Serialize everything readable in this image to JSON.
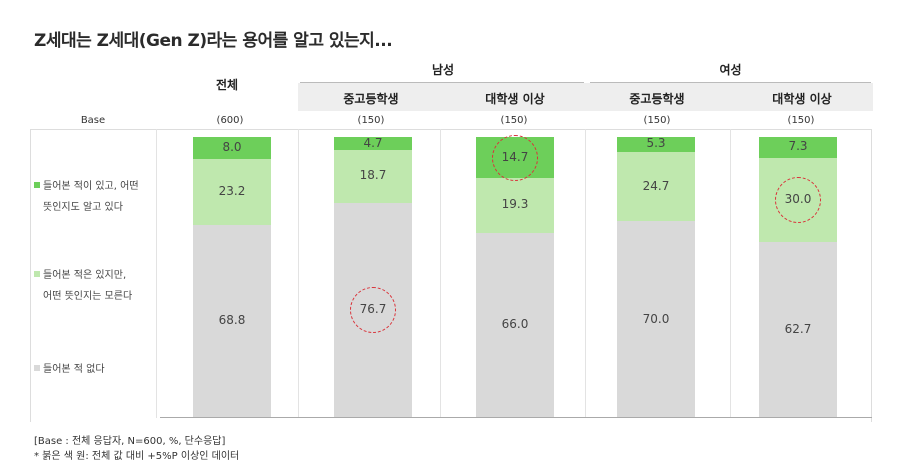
{
  "title": "Z세대는 Z세대(Gen Z)라는 용어를 알고 있는지...",
  "headers": {
    "total": "전체",
    "groups": [
      "남성",
      "여성"
    ],
    "subgroups": [
      "중고등학생",
      "대학생 이상",
      "중고등학생",
      "대학생 이상"
    ]
  },
  "base": {
    "label": "Base",
    "values": [
      "(600)",
      "(150)",
      "(150)",
      "(150)",
      "(150)"
    ]
  },
  "legend": [
    {
      "lines": [
        "들어본 적이 있고, 어떤",
        "뜻인지도 알고 있다"
      ],
      "color": "#6dcf5a"
    },
    {
      "lines": [
        "들어본 적은 있지만,",
        "어떤 뜻인지는 모른다"
      ],
      "color": "#bfe8ae"
    },
    {
      "lines": [
        "들어본 적 없다"
      ],
      "color": "#d9d9d9"
    }
  ],
  "footnotes": [
    "[Base :  전체 응답자, N=600, %, 단수응답]",
    "* 붉은 색 원: 전체 값 대비 +5%P 이상인 데이터"
  ],
  "colors": {
    "know": "#6dcf5a",
    "heard": "#bfe8ae",
    "never": "#d9d9d9",
    "highlight": "#d9333a"
  },
  "chart_data": {
    "type": "bar",
    "stacked": true,
    "categories": [
      "전체",
      "남성 중고등학생",
      "남성 대학생 이상",
      "여성 중고등학생",
      "여성 대학생 이상"
    ],
    "series": [
      {
        "name": "들어본 적 없다",
        "values": [
          68.8,
          76.7,
          66.0,
          70.0,
          62.7
        ]
      },
      {
        "name": "들어본 적은 있지만, 어떤 뜻인지는 모른다",
        "values": [
          23.2,
          18.7,
          19.3,
          24.7,
          30.0
        ]
      },
      {
        "name": "들어본 적이 있고, 어떤 뜻인지도 알고 있다",
        "values": [
          8.0,
          4.7,
          14.7,
          5.3,
          7.3
        ]
      }
    ],
    "labels": [
      [
        "68.8",
        "23.2",
        "8.0"
      ],
      [
        "76.7",
        "18.7",
        "4.7"
      ],
      [
        "66.0",
        "19.3",
        "14.7"
      ],
      [
        "70.0",
        "24.7",
        "5.3"
      ],
      [
        "62.7",
        "30.0",
        "7.3"
      ]
    ],
    "highlighted": [
      {
        "category_index": 1,
        "series_index": 0
      },
      {
        "category_index": 2,
        "series_index": 2
      },
      {
        "category_index": 4,
        "series_index": 1
      }
    ],
    "ylim": [
      0,
      100
    ]
  }
}
